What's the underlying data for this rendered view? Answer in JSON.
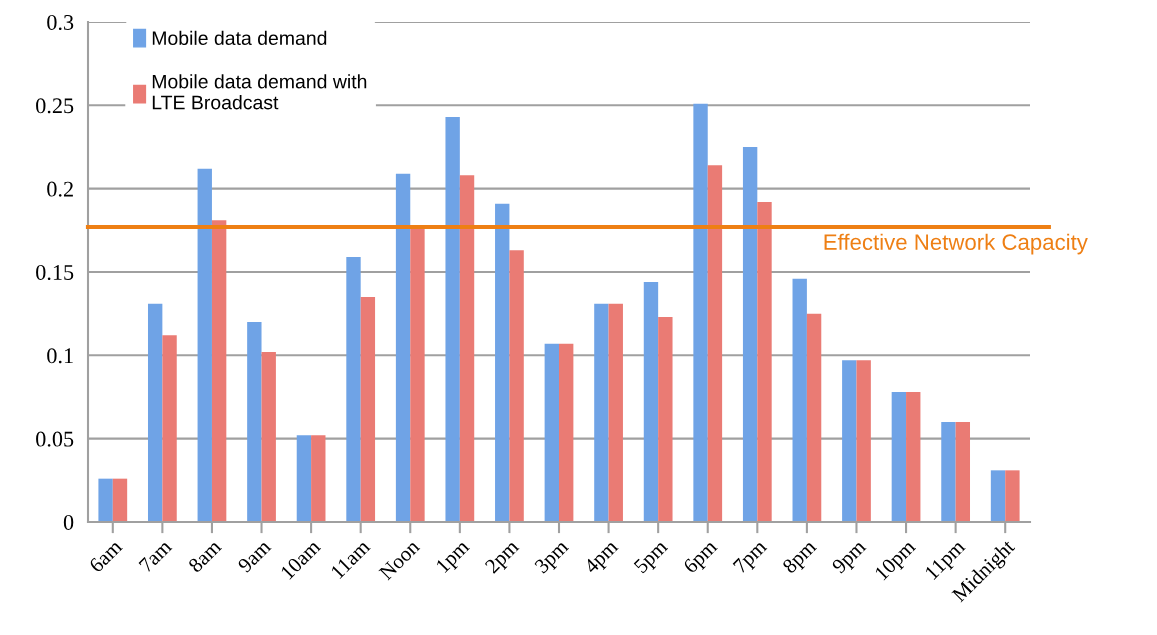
{
  "chart_data": {
    "type": "bar",
    "categories": [
      "6am",
      "7am",
      "8am",
      "9am",
      "10am",
      "11am",
      "Noon",
      "1pm",
      "2pm",
      "3pm",
      "4pm",
      "5pm",
      "6pm",
      "7pm",
      "8pm",
      "9pm",
      "10pm",
      "11pm",
      "Midnight"
    ],
    "series": [
      {
        "name": "Mobile data demand",
        "color": "#6fa3e6",
        "values": [
          0.026,
          0.131,
          0.212,
          0.12,
          0.052,
          0.159,
          0.209,
          0.243,
          0.191,
          0.107,
          0.131,
          0.144,
          0.251,
          0.225,
          0.146,
          0.097,
          0.078,
          0.06,
          0.031
        ]
      },
      {
        "name": "Mobile data demand with\nLTE Broadcast",
        "color": "#ea7b74",
        "values": [
          0.026,
          0.112,
          0.181,
          0.102,
          0.052,
          0.135,
          0.177,
          0.208,
          0.163,
          0.107,
          0.131,
          0.123,
          0.214,
          0.192,
          0.125,
          0.097,
          0.078,
          0.06,
          0.031
        ]
      }
    ],
    "ylim": [
      0,
      0.3
    ],
    "yticks": [
      0,
      0.05,
      0.1,
      0.15,
      0.2,
      0.25,
      0.3
    ],
    "grid": "y",
    "legend": "top left",
    "ref_lines": [
      {
        "axis": "y",
        "value": 0.177,
        "label": "Effective Network Capacity",
        "color": "#ee7f14",
        "line_style": "solid"
      }
    ]
  }
}
